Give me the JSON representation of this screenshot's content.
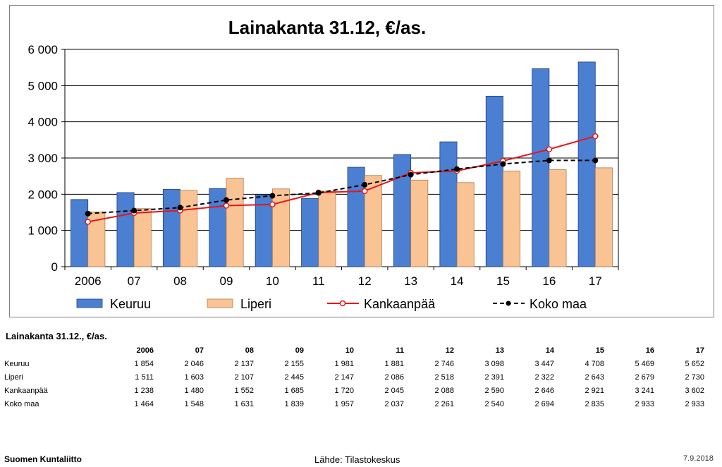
{
  "chart_data": {
    "type": "bar",
    "title": "Lainakanta 31.12, €/as.",
    "categories": [
      "2006",
      "07",
      "08",
      "09",
      "10",
      "11",
      "12",
      "13",
      "14",
      "15",
      "16",
      "17"
    ],
    "ylim": [
      0,
      6000
    ],
    "yticks": [
      0,
      1000,
      2000,
      3000,
      4000,
      5000,
      6000
    ],
    "ytick_labels": [
      "0",
      "1 000",
      "2 000",
      "3 000",
      "4 000",
      "5 000",
      "6 000"
    ],
    "grid": true,
    "legend_position": "bottom",
    "series": [
      {
        "name": "Keuruu",
        "kind": "bar",
        "color": "#4a7fd2",
        "values": [
          1854,
          2046,
          2137,
          2155,
          1981,
          1881,
          2746,
          3098,
          3447,
          4708,
          5469,
          5652
        ]
      },
      {
        "name": "Liperi",
        "kind": "bar",
        "color": "#f9c394",
        "values": [
          1511,
          1603,
          2107,
          2445,
          2147,
          2086,
          2518,
          2391,
          2322,
          2643,
          2679,
          2730
        ]
      },
      {
        "name": "Kankaanpää",
        "kind": "line",
        "color": "#e4161c",
        "marker": "open-circle",
        "values": [
          1238,
          1480,
          1552,
          1685,
          1720,
          2045,
          2088,
          2590,
          2646,
          2921,
          3241,
          3602
        ]
      },
      {
        "name": "Koko maa",
        "kind": "line-dashed",
        "color": "#000000",
        "marker": "filled-circle",
        "values": [
          1464,
          1548,
          1631,
          1839,
          1957,
          2037,
          2261,
          2540,
          2694,
          2835,
          2933,
          2933
        ]
      }
    ]
  },
  "table": {
    "title": "Lainakanta 31.12., €/as.",
    "headers": [
      "2006",
      "07",
      "08",
      "09",
      "10",
      "11",
      "12",
      "13",
      "14",
      "15",
      "16",
      "17"
    ],
    "rows": [
      {
        "name": "Keuruu",
        "cells": [
          "1 854",
          "2 046",
          "2 137",
          "2 155",
          "1 981",
          "1 881",
          "2 746",
          "3 098",
          "3 447",
          "4 708",
          "5 469",
          "5 652"
        ]
      },
      {
        "name": "Liperi",
        "cells": [
          "1 511",
          "1 603",
          "2 107",
          "2 445",
          "2 147",
          "2 086",
          "2 518",
          "2 391",
          "2 322",
          "2 643",
          "2 679",
          "2 730"
        ]
      },
      {
        "name": "Kankaanpää",
        "cells": [
          "1 238",
          "1 480",
          "1 552",
          "1 685",
          "1 720",
          "2 045",
          "2 088",
          "2 590",
          "2 646",
          "2 921",
          "3 241",
          "3 602"
        ]
      },
      {
        "name": "Koko maa",
        "cells": [
          "1 464",
          "1 548",
          "1 631",
          "1 839",
          "1 957",
          "2 037",
          "2 261",
          "2 540",
          "2 694",
          "2 835",
          "2 933",
          "2 933"
        ]
      }
    ]
  },
  "footer": {
    "organization": "Suomen Kuntaliitto",
    "source": "Lähde: Tilastokeskus",
    "date": "7.9.2018"
  }
}
